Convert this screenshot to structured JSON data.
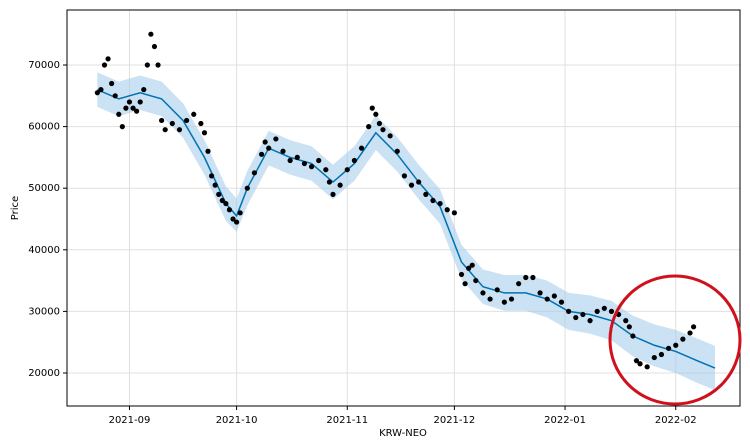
{
  "chart_data": {
    "type": "forecast",
    "x_label": "KRW-NEO",
    "y_label": "Price",
    "xlim": [
      -17.5,
      171
    ],
    "ylim": [
      14640,
      78930
    ],
    "xticks": [
      {
        "value": 0,
        "label": "2021-09"
      },
      {
        "value": 30,
        "label": "2021-10"
      },
      {
        "value": 61,
        "label": "2021-11"
      },
      {
        "value": 91,
        "label": "2021-12"
      },
      {
        "value": 122,
        "label": "2022-01"
      },
      {
        "value": 153,
        "label": "2022-02"
      }
    ],
    "yticks": [
      20000,
      30000,
      40000,
      50000,
      60000,
      70000
    ],
    "grid": true,
    "observed": {
      "color": "#000000",
      "x": [
        -9,
        -8,
        -7,
        -6,
        -5,
        -4,
        -3,
        -2,
        -1,
        0,
        1,
        2,
        3,
        4,
        5,
        6,
        7,
        8,
        9,
        10,
        12,
        14,
        16,
        18,
        20,
        21,
        22,
        23,
        24,
        25,
        26,
        27,
        28,
        29,
        30,
        31,
        33,
        35,
        37,
        38,
        39,
        41,
        43,
        45,
        47,
        49,
        51,
        53,
        55,
        56,
        57,
        59,
        61,
        63,
        65,
        67,
        68,
        69,
        70,
        71,
        73,
        75,
        77,
        79,
        81,
        83,
        85,
        87,
        89,
        91,
        93,
        94,
        95,
        96,
        97,
        99,
        101,
        103,
        105,
        107,
        109,
        111,
        113,
        115,
        117,
        119,
        121,
        123,
        125,
        127,
        129,
        131,
        133,
        135,
        137,
        139,
        140,
        141,
        142,
        143,
        145,
        147,
        149,
        151,
        153,
        155,
        157,
        158
      ],
      "values": [
        65500,
        66000,
        70000,
        71000,
        67000,
        65000,
        62000,
        60000,
        63000,
        64000,
        63000,
        62500,
        64000,
        66000,
        70000,
        75000,
        73000,
        70000,
        61000,
        59500,
        60500,
        59500,
        61000,
        62000,
        60500,
        59000,
        56000,
        52000,
        50500,
        49000,
        48000,
        47500,
        46500,
        45000,
        44500,
        46000,
        50000,
        52500,
        55500,
        57500,
        56500,
        58000,
        56000,
        54500,
        55000,
        54000,
        53500,
        54500,
        53000,
        51000,
        49000,
        50500,
        53000,
        54500,
        56500,
        60000,
        63000,
        62000,
        60500,
        59500,
        58500,
        56000,
        52000,
        50500,
        51000,
        49000,
        48000,
        47500,
        46500,
        46000,
        36000,
        34500,
        37000,
        37500,
        35000,
        33000,
        32000,
        33500,
        31500,
        32000,
        34500,
        35500,
        35500,
        33000,
        32000,
        32500,
        31500,
        30000,
        29000,
        29500,
        28500,
        30000,
        30500,
        30000,
        29500,
        28500,
        27500,
        26000,
        22000,
        21500,
        21000,
        22500,
        23000,
        24000,
        24500,
        25500,
        26500,
        27500
      ]
    },
    "forecast": {
      "color": "#0072b2",
      "band_color": "#9ecae9",
      "x": [
        -9,
        -3,
        3,
        9,
        15,
        21,
        27,
        30,
        33,
        39,
        45,
        51,
        57,
        63,
        69,
        75,
        81,
        87,
        93,
        99,
        105,
        111,
        117,
        123,
        129,
        135,
        141,
        147,
        153,
        159,
        164
      ],
      "values": [
        66000,
        64500,
        65500,
        64500,
        61000,
        55000,
        47500,
        45500,
        50000,
        56500,
        55000,
        54000,
        51000,
        54000,
        59000,
        55500,
        51000,
        47000,
        38000,
        34000,
        33000,
        33000,
        32000,
        30000,
        29500,
        28500,
        26000,
        24500,
        23500,
        22000,
        20800
      ],
      "lower": [
        63200,
        61700,
        62700,
        61700,
        58200,
        52200,
        44700,
        42900,
        47200,
        53700,
        52200,
        51200,
        48200,
        51200,
        56200,
        52700,
        48200,
        44200,
        35200,
        31200,
        30100,
        30100,
        29000,
        27000,
        26400,
        25300,
        22700,
        21100,
        20000,
        18400,
        17200
      ],
      "upper": [
        68800,
        67300,
        68300,
        67300,
        63800,
        57800,
        50300,
        48300,
        52800,
        59300,
        57800,
        56800,
        53800,
        56800,
        61800,
        58300,
        53800,
        49800,
        40800,
        36800,
        35900,
        35900,
        35000,
        33000,
        32600,
        31700,
        29300,
        27900,
        27000,
        25600,
        24400
      ]
    }
  }
}
